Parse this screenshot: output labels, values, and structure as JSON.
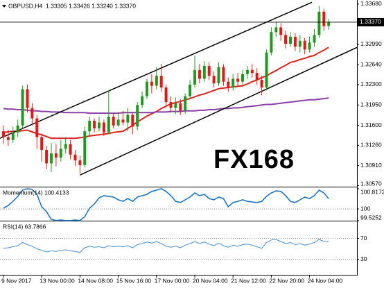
{
  "chart_data": [
    {
      "type": "candlestick",
      "title": "GBPUSD,H4",
      "subtitle": "1.33305 1.33426 1.33240 1.33370",
      "categories": [
        "9 Nov 2017",
        null,
        null,
        null,
        null,
        null,
        null,
        null,
        "13 Nov 00:00",
        null,
        null,
        null,
        null,
        null,
        null,
        null,
        "14 Nov 08:00",
        null,
        null,
        null,
        null,
        null,
        null,
        null,
        "15 Nov 16:00",
        null,
        null,
        null,
        null,
        null,
        null,
        null,
        "17 Nov 00:00",
        null,
        null,
        null,
        null,
        null,
        null,
        null,
        "20 Nov 04:00",
        null,
        null,
        null,
        null,
        null,
        null,
        null,
        "21 Nov 12:00",
        null,
        null,
        null,
        null,
        null,
        null,
        null,
        "22 Nov 20:00",
        null,
        null,
        null,
        null,
        null,
        null,
        null,
        "24 Nov 04:00",
        null,
        null,
        null,
        null
      ],
      "open": [
        1.315,
        1.314,
        1.3135,
        1.3148,
        1.316,
        1.3222,
        1.319,
        1.3172,
        1.314,
        1.3118,
        1.3095,
        1.3112,
        1.3105,
        1.312,
        1.3128,
        1.311,
        1.31,
        1.3092,
        1.315,
        1.3168,
        1.3155,
        1.3165,
        1.3148,
        1.3175,
        1.316,
        1.317,
        1.3165,
        1.3178,
        1.3158,
        1.3195,
        1.321,
        1.3235,
        1.3228,
        1.3245,
        1.3225,
        1.32,
        1.319,
        1.3198,
        1.3185,
        1.321,
        1.323,
        1.3255,
        1.324,
        1.3262,
        1.3245,
        1.3232,
        1.326,
        1.3235,
        1.3225,
        1.324,
        1.3235,
        1.3248,
        1.3255,
        1.325,
        1.3238,
        1.3225,
        1.3285,
        1.332,
        1.3328,
        1.3315,
        1.33,
        1.3312,
        1.3295,
        1.3305,
        1.329,
        1.3302,
        1.3315,
        1.3355,
        1.33305
      ],
      "high": [
        1.316,
        1.3152,
        1.3158,
        1.317,
        1.3228,
        1.323,
        1.3198,
        1.3178,
        1.3145,
        1.3125,
        1.313,
        1.3128,
        1.3135,
        1.314,
        1.3135,
        1.3118,
        1.3108,
        1.3158,
        1.3175,
        1.3172,
        1.3175,
        1.317,
        1.322,
        1.318,
        1.3182,
        1.3185,
        1.319,
        1.3182,
        1.32,
        1.3218,
        1.324,
        1.3248,
        1.326,
        1.3265,
        1.323,
        1.321,
        1.3208,
        1.3205,
        1.3215,
        1.3238,
        1.328,
        1.3265,
        1.327,
        1.3268,
        1.3252,
        1.3268,
        1.3265,
        1.3242,
        1.3248,
        1.325,
        1.3255,
        1.3262,
        1.3265,
        1.3258,
        1.3245,
        1.329,
        1.3328,
        1.3338,
        1.3335,
        1.3322,
        1.332,
        1.3318,
        1.3315,
        1.331,
        1.3312,
        1.3325,
        1.3365,
        1.336,
        1.33426
      ],
      "low": [
        1.3128,
        1.3125,
        1.313,
        1.314,
        1.3155,
        1.3182,
        1.316,
        1.312,
        1.3098,
        1.3085,
        1.308,
        1.309,
        1.3098,
        1.3112,
        1.3102,
        1.309,
        1.3078,
        1.3088,
        1.314,
        1.3148,
        1.315,
        1.3142,
        1.3145,
        1.3155,
        1.3158,
        1.316,
        1.315,
        1.3145,
        1.3152,
        1.319,
        1.3205,
        1.3215,
        1.3222,
        1.3218,
        1.3195,
        1.3182,
        1.318,
        1.3178,
        1.318,
        1.3205,
        1.3225,
        1.3232,
        1.3235,
        1.3238,
        1.3225,
        1.3228,
        1.3228,
        1.3218,
        1.322,
        1.3228,
        1.323,
        1.324,
        1.3242,
        1.323,
        1.3212,
        1.322,
        1.328,
        1.3312,
        1.3305,
        1.3292,
        1.3295,
        1.3288,
        1.3285,
        1.3282,
        1.3285,
        1.3295,
        1.331,
        1.3322,
        1.3324
      ],
      "close": [
        1.314,
        1.3135,
        1.3148,
        1.316,
        1.3222,
        1.319,
        1.3172,
        1.314,
        1.3118,
        1.3095,
        1.3112,
        1.3105,
        1.312,
        1.3128,
        1.311,
        1.31,
        1.3092,
        1.315,
        1.3168,
        1.3155,
        1.3165,
        1.3148,
        1.3175,
        1.316,
        1.317,
        1.3165,
        1.3178,
        1.3158,
        1.3195,
        1.321,
        1.3235,
        1.3228,
        1.3245,
        1.3225,
        1.32,
        1.319,
        1.3198,
        1.3185,
        1.321,
        1.323,
        1.3255,
        1.324,
        1.3262,
        1.3245,
        1.3232,
        1.326,
        1.3235,
        1.3225,
        1.324,
        1.3235,
        1.3248,
        1.3255,
        1.325,
        1.3238,
        1.3225,
        1.3285,
        1.332,
        1.3328,
        1.3315,
        1.33,
        1.3312,
        1.3295,
        1.3305,
        1.329,
        1.3302,
        1.3315,
        1.3355,
        1.333,
        1.3337
      ],
      "up_color": "#1f9a1f",
      "down_color": "#e01818",
      "overlays": [
        {
          "color": "#e0201a",
          "values": [
            1.3148,
            1.3149,
            1.315,
            1.315,
            1.3151,
            1.3152,
            1.3149,
            1.3146,
            1.3144,
            1.3141,
            1.3138,
            1.3138,
            1.3138,
            1.3138,
            1.3138,
            1.3138,
            1.3139,
            1.314,
            1.3142,
            1.3143,
            1.3144,
            1.3145,
            1.3146,
            1.3148,
            1.3149,
            1.315,
            1.3155,
            1.316,
            1.3166,
            1.3171,
            1.3176,
            1.318,
            1.3184,
            1.3189,
            1.3193,
            1.3197,
            1.3199,
            1.3201,
            1.3204,
            1.3206,
            1.3209,
            1.3212,
            1.3214,
            1.3217,
            1.322,
            1.3223,
            1.3224,
            1.3225,
            1.3226,
            1.3227,
            1.3228,
            1.3231,
            1.3235,
            1.3238,
            1.3242,
            1.3245,
            1.325,
            1.3254,
            1.3259,
            1.3263,
            1.3268,
            1.327,
            1.3273,
            1.3275,
            1.3278,
            1.328,
            1.3285,
            1.3289,
            1.3294
          ]
        },
        {
          "color": "#8a3ea8",
          "values": [
            1.3189,
            1.3188,
            1.3188,
            1.3187,
            1.3187,
            1.3186,
            1.3185,
            1.3185,
            1.3184,
            1.3184,
            1.3183,
            1.3183,
            1.3183,
            1.3182,
            1.3182,
            1.3182,
            1.3182,
            1.3182,
            1.3181,
            1.3181,
            1.3181,
            1.3181,
            1.3181,
            1.3181,
            1.3181,
            1.3182,
            1.3182,
            1.3182,
            1.3182,
            1.3182,
            1.3182,
            1.3182,
            1.3183,
            1.3183,
            1.3183,
            1.3184,
            1.3184,
            1.3184,
            1.3185,
            1.3185,
            1.3185,
            1.3186,
            1.3186,
            1.3187,
            1.3187,
            1.3188,
            1.3189,
            1.3189,
            1.319,
            1.319,
            1.3191,
            1.3192,
            1.3193,
            1.3194,
            1.3195,
            1.3196,
            1.3196,
            1.3197,
            1.3198,
            1.3199,
            1.32,
            1.3201,
            1.3202,
            1.3203,
            1.3204,
            1.3204,
            1.3205,
            1.3206,
            1.3207
          ]
        }
      ],
      "trendlines": [
        {
          "color": "#000000",
          "x": [
            -0.7,
            64.5
          ],
          "y": [
            1.3138,
            1.3371
          ]
        },
        {
          "color": "#000000",
          "x": [
            16,
            74
          ],
          "y": [
            1.3075,
            1.3294
          ]
        }
      ],
      "current_price": {
        "value": 1.3337,
        "label": "1.33370"
      },
      "watermark": "FX168",
      "ylim": [
        1.3055,
        1.3375
      ],
      "yticks": [
        {
          "value": 1.3368,
          "label": "1.33680"
        },
        {
          "value": 1.3299,
          "label": "1.32990"
        },
        {
          "value": 1.3264,
          "label": "1.32640"
        },
        {
          "value": 1.323,
          "label": "1.32300"
        },
        {
          "value": 1.3195,
          "label": "1.31950"
        },
        {
          "value": 1.316,
          "label": "1.31600"
        },
        {
          "value": 1.3126,
          "label": "1.31260"
        },
        {
          "value": 1.3091,
          "label": "1.30910"
        },
        {
          "value": 1.3057,
          "label": "1.30570"
        }
      ]
    },
    {
      "type": "line",
      "title": "Momentum(14) 100.4133",
      "color": "#1f74c2",
      "values": [
        100.03,
        100.14,
        100.31,
        100.51,
        100.76,
        100.82,
        100.79,
        100.59,
        100.09,
        99.89,
        99.58,
        99.53,
        99.55,
        99.53,
        99.53,
        99.55,
        99.53,
        99.69,
        100.03,
        100.2,
        100.45,
        100.54,
        100.51,
        100.48,
        100.37,
        100.31,
        100.42,
        100.31,
        100.48,
        100.54,
        100.59,
        100.71,
        100.76,
        100.82,
        100.71,
        100.54,
        100.31,
        100.26,
        100.37,
        100.48,
        100.65,
        100.54,
        100.59,
        100.42,
        100.37,
        100.48,
        100.42,
        100.09,
        100.26,
        100.31,
        100.37,
        100.31,
        100.28,
        100.26,
        100.31,
        100.51,
        100.65,
        100.73,
        100.71,
        100.54,
        100.31,
        100.26,
        100.37,
        100.48,
        100.42,
        100.54,
        100.76,
        100.65,
        100.4133
      ],
      "ylim": [
        99.5252,
        100.8172
      ],
      "yticks": [
        100.8172,
        100,
        99.5252
      ],
      "levels": [
        100
      ]
    },
    {
      "type": "line",
      "title": "RSI(14) 63.7866",
      "color": "#4a8fd0",
      "values": [
        51,
        52,
        54,
        56,
        62,
        58,
        55,
        50,
        47,
        44,
        46,
        45,
        47,
        48,
        46,
        45,
        43,
        52,
        55,
        53,
        54,
        52,
        56,
        54,
        55,
        54,
        56,
        52,
        58,
        60,
        63,
        61,
        64,
        60,
        55,
        53,
        55,
        52,
        57,
        60,
        64,
        60,
        63,
        59,
        56,
        61,
        56,
        53,
        57,
        55,
        58,
        59,
        57,
        54,
        51,
        62,
        67,
        68,
        64,
        60,
        62,
        58,
        60,
        57,
        59,
        62,
        68,
        64,
        63.7866
      ],
      "ylim": [
        0,
        100
      ],
      "yticks": [
        70,
        30
      ],
      "levels": [
        70,
        30
      ]
    }
  ]
}
